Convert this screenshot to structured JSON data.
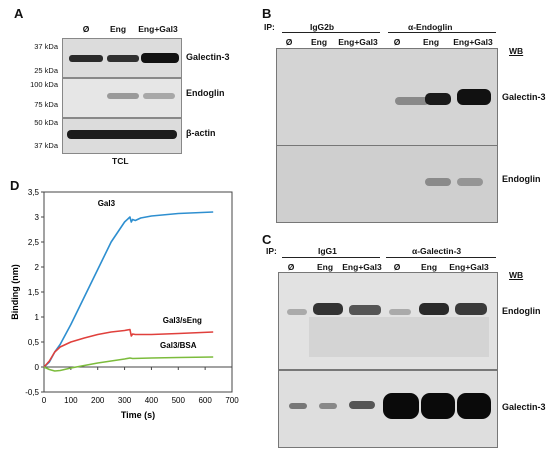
{
  "panel_a": {
    "letter": "A",
    "lanes": [
      "Ø",
      "Eng",
      "Eng+Gal3"
    ],
    "blots": [
      {
        "label": "Galectin-3",
        "mw_top": "37 kDa",
        "mw_bottom": "25 kDa"
      },
      {
        "label": "Endoglin",
        "mw_top": "100 kDa",
        "mw_bottom": "75 kDa"
      },
      {
        "label": "β-actin",
        "mw_top": "50 kDa",
        "mw_bottom": "37 kDa"
      }
    ],
    "footer": "TCL"
  },
  "panel_b": {
    "letter": "B",
    "ip_label": "IP:",
    "groups": [
      "IgG2b",
      "α-Endoglin"
    ],
    "lanes": [
      "Ø",
      "Eng",
      "Eng+Gal3",
      "Ø",
      "Eng",
      "Eng+Gal3"
    ],
    "wb_label": "WB",
    "blots": [
      "Galectin-3",
      "Endoglin"
    ]
  },
  "panel_c": {
    "letter": "C",
    "ip_label": "IP:",
    "groups": [
      "IgG1",
      "α-Galectin-3"
    ],
    "lanes": [
      "Ø",
      "Eng",
      "Eng+Gal3",
      "Ø",
      "Eng",
      "Eng+Gal3"
    ],
    "wb_label": "WB",
    "blots": [
      "Endoglin",
      "Galectin-3"
    ]
  },
  "panel_d": {
    "letter": "D"
  },
  "chart_data": {
    "type": "line",
    "title": "",
    "xlabel": "Time (s)",
    "ylabel": "Binding (nm)",
    "xlim": [
      0,
      700
    ],
    "ylim": [
      -0.5,
      3.5
    ],
    "xticks": [
      0,
      100,
      200,
      300,
      400,
      500,
      600,
      700
    ],
    "yticks": [
      "-0,5",
      "0",
      "0,5",
      "1",
      "1,5",
      "2",
      "2,5",
      "3",
      "3,5"
    ],
    "ytick_values": [
      -0.5,
      0,
      0.5,
      1,
      1.5,
      2,
      2.5,
      3,
      3.5
    ],
    "grid": false,
    "series": [
      {
        "name": "Gal3",
        "color": "#2e8fd0",
        "x": [
          0,
          20,
          40,
          60,
          100,
          150,
          200,
          250,
          300,
          320,
          325,
          330,
          340,
          360,
          400,
          500,
          630
        ],
        "y": [
          0,
          0.1,
          0.3,
          0.45,
          0.85,
          1.4,
          1.95,
          2.5,
          2.9,
          3.0,
          2.9,
          2.95,
          2.93,
          2.98,
          3.02,
          3.07,
          3.1
        ]
      },
      {
        "name": "Gal3/sEng",
        "color": "#e0403c",
        "x": [
          0,
          20,
          40,
          60,
          100,
          150,
          200,
          250,
          300,
          320,
          325,
          330,
          340,
          400,
          500,
          630
        ],
        "y": [
          0,
          0.12,
          0.3,
          0.4,
          0.5,
          0.58,
          0.65,
          0.7,
          0.73,
          0.75,
          0.62,
          0.66,
          0.65,
          0.65,
          0.67,
          0.7
        ]
      },
      {
        "name": "Gal3/BSA",
        "color": "#7cbc3c",
        "x": [
          0,
          20,
          40,
          60,
          100,
          150,
          200,
          250,
          300,
          320,
          330,
          400,
          500,
          630
        ],
        "y": [
          0,
          -0.05,
          -0.08,
          -0.07,
          -0.02,
          0.03,
          0.08,
          0.12,
          0.16,
          0.18,
          0.17,
          0.18,
          0.19,
          0.2
        ]
      }
    ]
  }
}
